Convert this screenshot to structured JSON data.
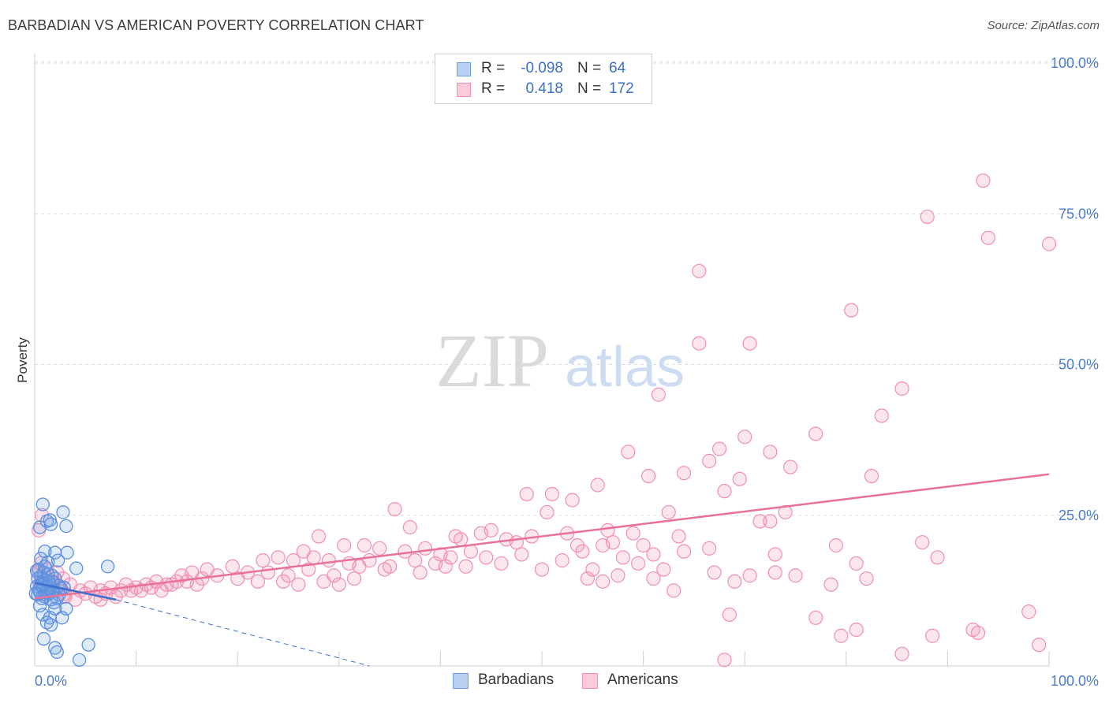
{
  "title": "BARBADIAN VS AMERICAN POVERTY CORRELATION CHART",
  "source": "Source: ZipAtlas.com",
  "watermark": {
    "zip": "ZIP",
    "atlas": "atlas"
  },
  "legend": {
    "rows": [
      {
        "r_label": "R =",
        "r_value": "-0.098",
        "n_label": "N =",
        "n_value": "64",
        "color": "#6e9ee0"
      },
      {
        "r_label": "R =",
        "r_value": "0.418",
        "n_label": "N =",
        "n_value": "172",
        "color": "#f08fb0"
      }
    ]
  },
  "bottom_legend": {
    "barbadians": "Barbadians",
    "americans": "Americans"
  },
  "colors": {
    "blue": "#6e9ee0",
    "blue_line": "#3a6fd0",
    "pink": "#f08fb0",
    "pink_line": "#e8709a",
    "tick": "#4a7bc8"
  },
  "chart_data": {
    "type": "scatter",
    "ylabel": "Poverty",
    "xlabel": "",
    "xlim": [
      0,
      100
    ],
    "ylim": [
      0,
      100
    ],
    "y_tick_labels": [
      "100.0%",
      "75.0%",
      "50.0%",
      "25.0%"
    ],
    "y_tick_values": [
      100,
      75,
      50,
      25
    ],
    "x_tick_labels": [
      "0.0%",
      "100.0%"
    ],
    "grid": true,
    "legend_position": "top-center",
    "series": [
      {
        "name": "Barbadians",
        "color": "#6e9ee0",
        "trend": {
          "x0": 0,
          "y0": 13.8,
          "x1": 8,
          "y1": 11.0,
          "dashed_to": [
            33,
            0.0
          ]
        },
        "points": [
          [
            0.8,
            26.8
          ],
          [
            1.2,
            24.0
          ],
          [
            1.5,
            24.2
          ],
          [
            2.8,
            25.5
          ],
          [
            3.1,
            23.2
          ],
          [
            0.5,
            23.0
          ],
          [
            1.6,
            23.5
          ],
          [
            1.0,
            19.0
          ],
          [
            2.0,
            18.8
          ],
          [
            3.2,
            18.8
          ],
          [
            0.6,
            17.8
          ],
          [
            1.3,
            17.2
          ],
          [
            2.3,
            17.5
          ],
          [
            4.1,
            16.2
          ],
          [
            7.2,
            16.5
          ],
          [
            0.4,
            16.0
          ],
          [
            0.9,
            15.5
          ],
          [
            1.7,
            15.0
          ],
          [
            0.3,
            14.5
          ],
          [
            1.1,
            14.2
          ],
          [
            2.0,
            14.5
          ],
          [
            0.7,
            13.8
          ],
          [
            1.5,
            13.5
          ],
          [
            0.2,
            13.2
          ],
          [
            0.8,
            13.0
          ],
          [
            1.2,
            12.8
          ],
          [
            1.9,
            12.5
          ],
          [
            2.6,
            12.8
          ],
          [
            0.5,
            12.3
          ],
          [
            1.4,
            12.0
          ],
          [
            0.3,
            11.8
          ],
          [
            1.0,
            11.5
          ],
          [
            2.2,
            11.2
          ],
          [
            1.6,
            11.0
          ],
          [
            0.9,
            13.6
          ],
          [
            1.8,
            13.9
          ],
          [
            0.6,
            14.8
          ],
          [
            1.3,
            15.2
          ],
          [
            2.4,
            13.3
          ],
          [
            0.4,
            12.6
          ],
          [
            1.1,
            12.2
          ],
          [
            0.7,
            11.2
          ],
          [
            1.9,
            10.5
          ],
          [
            0.5,
            10.0
          ],
          [
            3.1,
            9.5
          ],
          [
            2.0,
            9.5
          ],
          [
            0.8,
            8.5
          ],
          [
            1.5,
            8.0
          ],
          [
            2.7,
            8.0
          ],
          [
            1.2,
            7.2
          ],
          [
            1.6,
            6.8
          ],
          [
            0.9,
            4.5
          ],
          [
            2.0,
            3.0
          ],
          [
            5.3,
            3.5
          ],
          [
            2.2,
            2.3
          ],
          [
            4.4,
            1.0
          ],
          [
            1.4,
            14.0
          ],
          [
            0.2,
            15.8
          ],
          [
            2.9,
            13.0
          ],
          [
            1.0,
            16.5
          ],
          [
            0.1,
            12.0
          ],
          [
            1.7,
            12.4
          ],
          [
            0.6,
            13.4
          ],
          [
            2.4,
            11.8
          ]
        ]
      },
      {
        "name": "Americans",
        "color": "#f08fb0",
        "trend": {
          "x0": 0,
          "y0": 11.2,
          "x1": 100,
          "y1": 31.8
        },
        "points": [
          [
            93.5,
            80.5
          ],
          [
            88.0,
            74.5
          ],
          [
            94.0,
            71.0
          ],
          [
            100.0,
            70.0
          ],
          [
            65.5,
            65.5
          ],
          [
            80.5,
            59.0
          ],
          [
            70.5,
            53.5
          ],
          [
            65.5,
            53.5
          ],
          [
            61.5,
            45.0
          ],
          [
            85.5,
            46.0
          ],
          [
            83.5,
            41.5
          ],
          [
            70.0,
            38.0
          ],
          [
            77.0,
            38.5
          ],
          [
            58.5,
            35.5
          ],
          [
            72.5,
            35.5
          ],
          [
            67.5,
            36.0
          ],
          [
            66.5,
            34.0
          ],
          [
            74.5,
            33.0
          ],
          [
            60.5,
            31.5
          ],
          [
            64.0,
            32.0
          ],
          [
            69.5,
            31.0
          ],
          [
            82.5,
            31.5
          ],
          [
            55.5,
            30.0
          ],
          [
            48.5,
            28.5
          ],
          [
            51.0,
            28.5
          ],
          [
            68.0,
            29.0
          ],
          [
            53.0,
            27.5
          ],
          [
            62.5,
            25.5
          ],
          [
            74.0,
            25.5
          ],
          [
            35.5,
            26.0
          ],
          [
            50.5,
            25.5
          ],
          [
            71.5,
            24.0
          ],
          [
            72.5,
            24.0
          ],
          [
            37.0,
            23.0
          ],
          [
            45.0,
            22.5
          ],
          [
            44.0,
            22.0
          ],
          [
            46.5,
            21.0
          ],
          [
            49.0,
            21.5
          ],
          [
            52.5,
            22.0
          ],
          [
            56.5,
            22.5
          ],
          [
            59.0,
            22.0
          ],
          [
            41.5,
            21.5
          ],
          [
            42.0,
            21.0
          ],
          [
            28.0,
            21.5
          ],
          [
            30.5,
            20.0
          ],
          [
            32.5,
            20.0
          ],
          [
            34.0,
            19.5
          ],
          [
            36.5,
            19.0
          ],
          [
            38.5,
            19.5
          ],
          [
            40.0,
            18.5
          ],
          [
            43.0,
            19.0
          ],
          [
            47.5,
            20.5
          ],
          [
            53.5,
            20.0
          ],
          [
            56.0,
            20.0
          ],
          [
            57.0,
            20.5
          ],
          [
            60.0,
            20.0
          ],
          [
            63.5,
            21.5
          ],
          [
            66.5,
            19.5
          ],
          [
            26.5,
            19.0
          ],
          [
            24.0,
            18.0
          ],
          [
            22.5,
            17.5
          ],
          [
            25.5,
            17.5
          ],
          [
            27.5,
            18.0
          ],
          [
            29.0,
            17.5
          ],
          [
            31.0,
            17.0
          ],
          [
            33.0,
            17.5
          ],
          [
            35.0,
            16.5
          ],
          [
            37.5,
            17.5
          ],
          [
            39.5,
            17.0
          ],
          [
            41.0,
            18.0
          ],
          [
            44.5,
            18.0
          ],
          [
            48.0,
            18.5
          ],
          [
            52.0,
            17.5
          ],
          [
            54.0,
            19.0
          ],
          [
            58.0,
            18.0
          ],
          [
            59.5,
            17.0
          ],
          [
            61.0,
            18.5
          ],
          [
            64.0,
            19.0
          ],
          [
            73.0,
            18.5
          ],
          [
            79.0,
            20.0
          ],
          [
            81.0,
            17.0
          ],
          [
            87.5,
            20.5
          ],
          [
            17.0,
            16.0
          ],
          [
            19.5,
            16.5
          ],
          [
            21.0,
            15.5
          ],
          [
            23.0,
            15.5
          ],
          [
            25.0,
            15.0
          ],
          [
            27.0,
            16.0
          ],
          [
            29.5,
            15.0
          ],
          [
            32.0,
            16.5
          ],
          [
            34.5,
            16.0
          ],
          [
            38.0,
            15.5
          ],
          [
            40.5,
            16.5
          ],
          [
            42.5,
            16.5
          ],
          [
            46.0,
            17.0
          ],
          [
            50.0,
            16.0
          ],
          [
            55.0,
            16.0
          ],
          [
            57.5,
            15.0
          ],
          [
            62.0,
            16.0
          ],
          [
            67.0,
            15.5
          ],
          [
            14.5,
            15.0
          ],
          [
            15.5,
            15.5
          ],
          [
            16.5,
            14.5
          ],
          [
            18.0,
            15.0
          ],
          [
            20.0,
            14.5
          ],
          [
            22.0,
            14.0
          ],
          [
            24.5,
            14.0
          ],
          [
            26.0,
            13.5
          ],
          [
            28.5,
            14.0
          ],
          [
            30.0,
            13.5
          ],
          [
            31.5,
            14.5
          ],
          [
            12.0,
            14.0
          ],
          [
            13.0,
            13.5
          ],
          [
            14.0,
            14.0
          ],
          [
            11.0,
            13.5
          ],
          [
            10.0,
            13.0
          ],
          [
            9.0,
            13.5
          ],
          [
            8.5,
            12.5
          ],
          [
            7.5,
            13.0
          ],
          [
            6.5,
            12.5
          ],
          [
            5.5,
            13.0
          ],
          [
            4.5,
            12.5
          ],
          [
            3.5,
            13.5
          ],
          [
            3.0,
            12.0
          ],
          [
            2.5,
            13.0
          ],
          [
            2.0,
            12.5
          ],
          [
            1.5,
            13.0
          ],
          [
            1.0,
            12.0
          ],
          [
            0.5,
            13.5
          ],
          [
            0.8,
            14.5
          ],
          [
            1.8,
            14.0
          ],
          [
            2.8,
            14.5
          ],
          [
            0.3,
            15.5
          ],
          [
            1.2,
            16.0
          ],
          [
            0.6,
            17.0
          ],
          [
            2.2,
            15.5
          ],
          [
            0.4,
            22.5
          ],
          [
            0.7,
            25.0
          ],
          [
            5.0,
            12.0
          ],
          [
            6.0,
            11.5
          ],
          [
            7.0,
            12.0
          ],
          [
            8.0,
            11.5
          ],
          [
            9.5,
            12.5
          ],
          [
            10.5,
            12.5
          ],
          [
            11.5,
            13.0
          ],
          [
            12.5,
            12.5
          ],
          [
            13.5,
            13.5
          ],
          [
            15.0,
            14.0
          ],
          [
            16.0,
            13.5
          ],
          [
            4.0,
            11.0
          ],
          [
            3.0,
            11.5
          ],
          [
            6.5,
            11.0
          ],
          [
            54.5,
            14.5
          ],
          [
            56.0,
            14.0
          ],
          [
            61.0,
            14.5
          ],
          [
            63.0,
            12.5
          ],
          [
            69.0,
            14.0
          ],
          [
            75.0,
            15.0
          ],
          [
            78.5,
            13.5
          ],
          [
            82.0,
            14.5
          ],
          [
            73.0,
            15.5
          ],
          [
            77.0,
            8.0
          ],
          [
            68.5,
            8.5
          ],
          [
            81.0,
            6.0
          ],
          [
            79.5,
            5.0
          ],
          [
            88.5,
            5.0
          ],
          [
            92.5,
            6.0
          ],
          [
            93.0,
            5.5
          ],
          [
            99.0,
            3.5
          ],
          [
            98.0,
            9.0
          ],
          [
            85.5,
            2.0
          ],
          [
            68.0,
            1.0
          ],
          [
            70.5,
            15.0
          ],
          [
            89.0,
            18.0
          ]
        ]
      }
    ]
  }
}
